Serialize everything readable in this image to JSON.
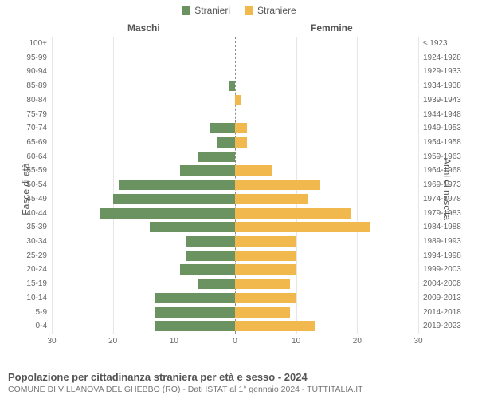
{
  "legend": {
    "male": {
      "label": "Stranieri",
      "color": "#6b9362"
    },
    "female": {
      "label": "Straniere",
      "color": "#f0b84d"
    }
  },
  "columns": {
    "left": "Maschi",
    "right": "Femmine"
  },
  "yaxis": {
    "left_title": "Fasce di età",
    "right_title": "Anni di nascita"
  },
  "xaxis": {
    "max": 30,
    "ticks": [
      30,
      20,
      10,
      0,
      10,
      20,
      30
    ]
  },
  "styling": {
    "grid_color": "#e6e6e6",
    "center_line_color": "#888888",
    "background": "#ffffff",
    "tick_font_size": 10,
    "label_color": "#666666"
  },
  "rows": [
    {
      "age": "100+",
      "birth": "≤ 1923",
      "m": 0,
      "f": 0
    },
    {
      "age": "95-99",
      "birth": "1924-1928",
      "m": 0,
      "f": 0
    },
    {
      "age": "90-94",
      "birth": "1929-1933",
      "m": 0,
      "f": 0
    },
    {
      "age": "85-89",
      "birth": "1934-1938",
      "m": 1,
      "f": 0
    },
    {
      "age": "80-84",
      "birth": "1939-1943",
      "m": 0,
      "f": 1
    },
    {
      "age": "75-79",
      "birth": "1944-1948",
      "m": 0,
      "f": 0
    },
    {
      "age": "70-74",
      "birth": "1949-1953",
      "m": 4,
      "f": 2
    },
    {
      "age": "65-69",
      "birth": "1954-1958",
      "m": 3,
      "f": 2
    },
    {
      "age": "60-64",
      "birth": "1959-1963",
      "m": 6,
      "f": 0
    },
    {
      "age": "55-59",
      "birth": "1964-1968",
      "m": 9,
      "f": 6
    },
    {
      "age": "50-54",
      "birth": "1969-1973",
      "m": 19,
      "f": 14
    },
    {
      "age": "45-49",
      "birth": "1974-1978",
      "m": 20,
      "f": 12
    },
    {
      "age": "40-44",
      "birth": "1979-1983",
      "m": 22,
      "f": 19
    },
    {
      "age": "35-39",
      "birth": "1984-1988",
      "m": 14,
      "f": 22
    },
    {
      "age": "30-34",
      "birth": "1989-1993",
      "m": 8,
      "f": 10
    },
    {
      "age": "25-29",
      "birth": "1994-1998",
      "m": 8,
      "f": 10
    },
    {
      "age": "20-24",
      "birth": "1999-2003",
      "m": 9,
      "f": 10
    },
    {
      "age": "15-19",
      "birth": "2004-2008",
      "m": 6,
      "f": 9
    },
    {
      "age": "10-14",
      "birth": "2009-2013",
      "m": 13,
      "f": 10
    },
    {
      "age": "5-9",
      "birth": "2014-2018",
      "m": 13,
      "f": 9
    },
    {
      "age": "0-4",
      "birth": "2019-2023",
      "m": 13,
      "f": 13
    }
  ],
  "footer": {
    "title": "Popolazione per cittadinanza straniera per età e sesso - 2024",
    "subtitle": "COMUNE DI VILLANOVA DEL GHEBBO (RO) - Dati ISTAT al 1° gennaio 2024 - TUTTITALIA.IT"
  }
}
